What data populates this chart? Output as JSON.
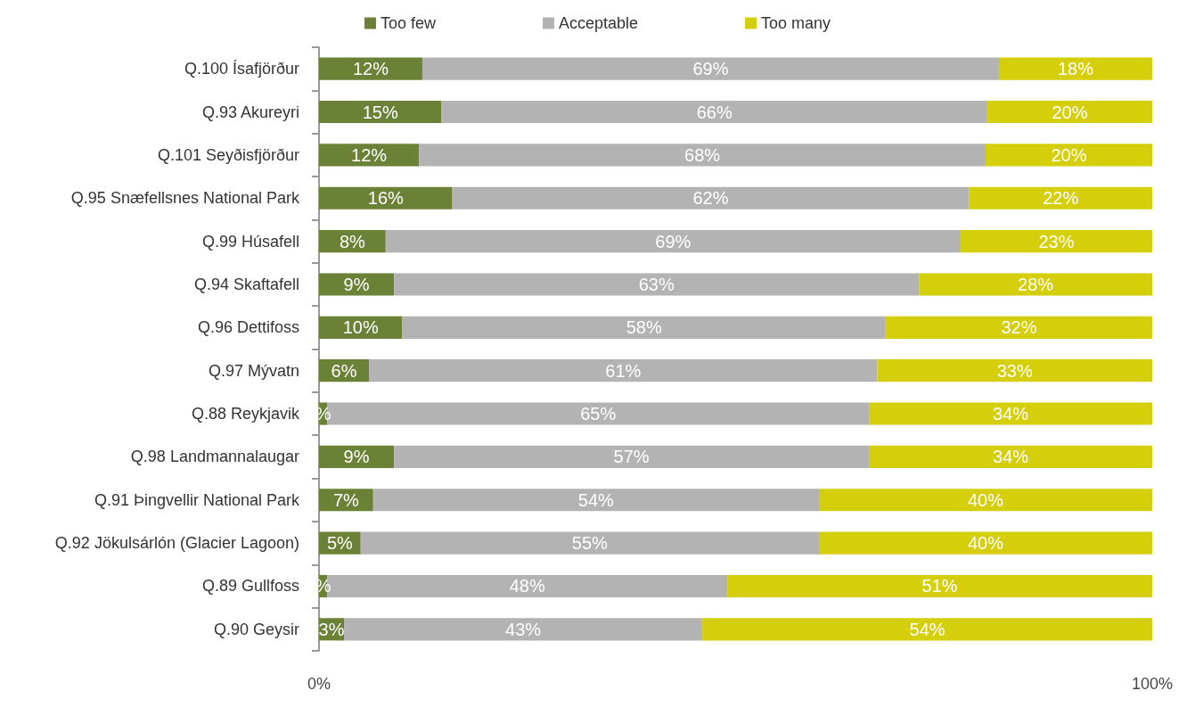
{
  "chart_data": {
    "type": "bar",
    "orientation": "horizontal",
    "stacked": true,
    "categories": [
      "Q.100 Ísafjörður",
      "Q.93 Akureyri",
      "Q.101 Seyðisfjörður",
      "Q.95 Snæfellsnes National Park",
      "Q.99 Húsafell",
      "Q.94 Skaftafell",
      "Q.96 Dettifoss",
      "Q.97 Mývatn",
      "Q.88 Reykjavik",
      "Q.98 Landmannalaugar",
      "Q.91 Þingvellir National Park",
      "Q.92 Jökulsárlón (Glacier Lagoon)",
      "Q.89 Gullfoss",
      "Q.90 Geysir"
    ],
    "series": [
      {
        "name": "Too few",
        "color": "#6b8136",
        "values": [
          12.4,
          14.7,
          12,
          16,
          8,
          9,
          10,
          6,
          1,
          9,
          6.5,
          5,
          1,
          3
        ],
        "value_labels": [
          "12%",
          "15%",
          "12%",
          "16%",
          "8%",
          "9%",
          "10%",
          "6%",
          "%",
          "9%",
          "7%",
          "5%",
          "%",
          "3%"
        ]
      },
      {
        "name": "Acceptable",
        "color": "#b3b3b3",
        "values": [
          69.2,
          65.5,
          68,
          62,
          69,
          63,
          58,
          61,
          65,
          57,
          53.5,
          55,
          48,
          43
        ],
        "value_labels": [
          "69%",
          "66%",
          "68%",
          "62%",
          "69%",
          "63%",
          "58%",
          "61%",
          "65%",
          "57%",
          "54%",
          "55%",
          "48%",
          "43%"
        ]
      },
      {
        "name": "Too many",
        "color": "#d4cf0a",
        "values": [
          18.4,
          19.8,
          20,
          22,
          23,
          28,
          32,
          33,
          34,
          34,
          40,
          40,
          51,
          54
        ],
        "value_labels": [
          "18%",
          "20%",
          "20%",
          "22%",
          "23%",
          "28%",
          "32%",
          "33%",
          "34%",
          "34%",
          "40%",
          "40%",
          "51%",
          "54%"
        ]
      }
    ],
    "xlim": [
      0,
      100
    ],
    "xticks": [
      {
        "value": 0,
        "label": "0%"
      },
      {
        "value": 100,
        "label": "100%"
      }
    ],
    "grid": false,
    "legend": "top"
  }
}
